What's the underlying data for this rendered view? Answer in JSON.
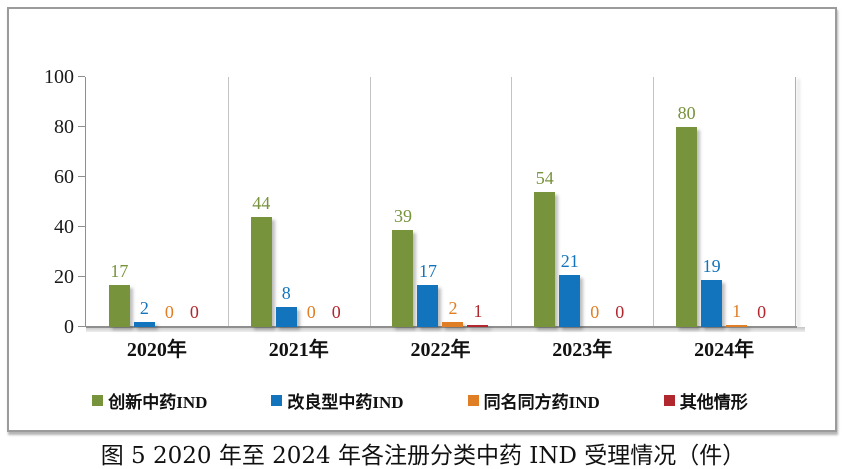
{
  "figure": {
    "caption": "图 5  2020 年至 2024 年各注册分类中药 IND 受理情况（件）"
  },
  "chart_data": {
    "type": "bar",
    "title": "",
    "xlabel": "",
    "ylabel": "",
    "categories": [
      "2020年",
      "2021年",
      "2022年",
      "2023年",
      "2024年"
    ],
    "series": [
      {
        "name": "创新中药IND",
        "color": "#77933C",
        "values": [
          17,
          44,
          39,
          54,
          80
        ]
      },
      {
        "name": "改良型中药IND",
        "color": "#1274BC",
        "values": [
          2,
          8,
          17,
          21,
          19
        ]
      },
      {
        "name": "同名同方药IND",
        "color": "#E07E25",
        "values": [
          0,
          0,
          2,
          0,
          1
        ]
      },
      {
        "name": "其他情形",
        "color": "#B0282E",
        "values": [
          0,
          0,
          1,
          0,
          0
        ]
      }
    ],
    "ylim": [
      0,
      100
    ],
    "yticks": [
      0,
      20,
      40,
      60,
      80,
      100
    ],
    "grid": "vertical category dividers only",
    "legend_position": "bottom",
    "value_labels_shown": true
  }
}
